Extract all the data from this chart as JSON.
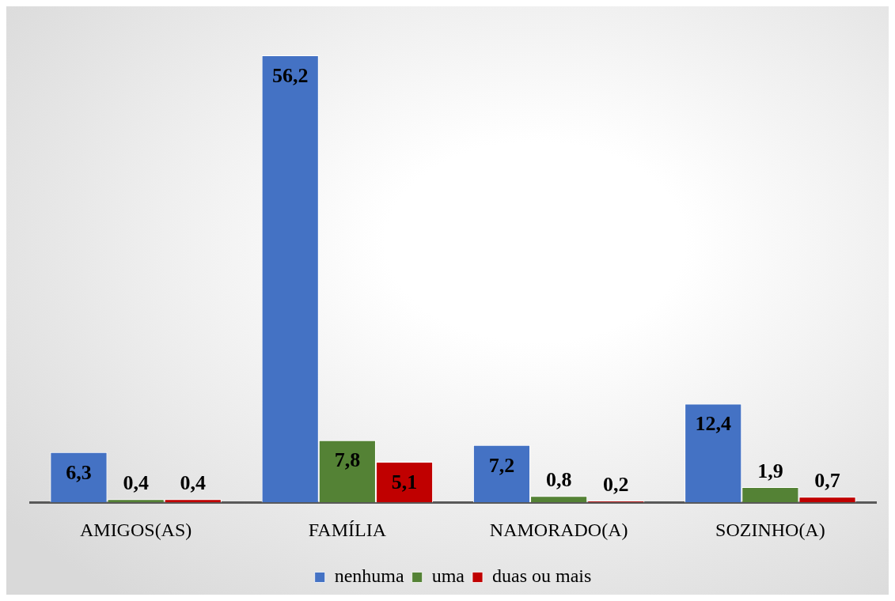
{
  "chart_data": {
    "type": "bar",
    "categories": [
      "AMIGOS(AS)",
      "FAMÍLIA",
      "NAMORADO(A)",
      "SOZINHO(A)"
    ],
    "series": [
      {
        "name": "nenhuma",
        "color": "#4472c4",
        "values": [
          6.3,
          56.2,
          7.2,
          12.4
        ],
        "value_labels": [
          "6,3",
          "56,2",
          "7,2",
          "12,4"
        ]
      },
      {
        "name": "uma",
        "color": "#548235",
        "values": [
          0.4,
          7.8,
          0.8,
          1.9
        ],
        "value_labels": [
          "0,4",
          "7,8",
          "0,8",
          "1,9"
        ]
      },
      {
        "name": "duas ou mais",
        "color": "#c00000",
        "values": [
          0.4,
          5.1,
          0.2,
          0.7
        ],
        "value_labels": [
          "0,4",
          "5,1",
          "0,2",
          "0,7"
        ]
      }
    ],
    "grid": false,
    "legend": "bottom"
  }
}
